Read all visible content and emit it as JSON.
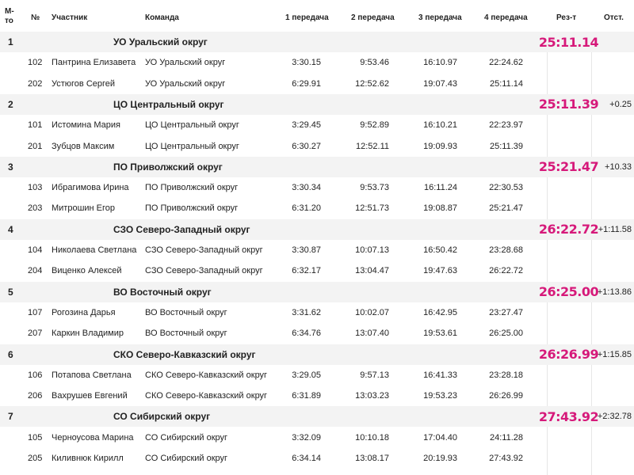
{
  "header": {
    "place_line1": "М-",
    "place_line2": "то",
    "num": "№",
    "participant": "Участник",
    "team": "Команда",
    "leg1": "1 передача",
    "leg2": "2 передача",
    "leg3": "3 передача",
    "leg4": "4 передача",
    "result": "Рез-т",
    "gap": "Отст."
  },
  "accent_color": "#d6197a",
  "teams": [
    {
      "place": "1",
      "name": "УО Уральский округ",
      "result": "25:11.14",
      "gap": "",
      "members": [
        {
          "num": "102",
          "name": "Пантрина Елизавета",
          "team": "УО Уральский округ",
          "t1": "3:30.15",
          "t2": "9:53.46",
          "t3": "16:10.97",
          "t4": "22:24.62"
        },
        {
          "num": "202",
          "name": "Устюгов Сергей",
          "team": "УО Уральский округ",
          "t1": "6:29.91",
          "t2": "12:52.62",
          "t3": "19:07.43",
          "t4": "25:11.14"
        }
      ]
    },
    {
      "place": "2",
      "name": "ЦО Центральный округ",
      "result": "25:11.39",
      "gap": "+0.25",
      "members": [
        {
          "num": "101",
          "name": "Истомина Мария",
          "team": "ЦО Центральный округ",
          "t1": "3:29.45",
          "t2": "9:52.89",
          "t3": "16:10.21",
          "t4": "22:23.97"
        },
        {
          "num": "201",
          "name": "Зубцов Максим",
          "team": "ЦО Центральный округ",
          "t1": "6:30.27",
          "t2": "12:52.11",
          "t3": "19:09.93",
          "t4": "25:11.39"
        }
      ]
    },
    {
      "place": "3",
      "name": "ПО Приволжский округ",
      "result": "25:21.47",
      "gap": "+10.33",
      "members": [
        {
          "num": "103",
          "name": "Ибрагимова Ирина",
          "team": "ПО Приволжский округ",
          "t1": "3:30.34",
          "t2": "9:53.73",
          "t3": "16:11.24",
          "t4": "22:30.53"
        },
        {
          "num": "203",
          "name": "Митрошин Егор",
          "team": "ПО Приволжский округ",
          "t1": "6:31.20",
          "t2": "12:51.73",
          "t3": "19:08.87",
          "t4": "25:21.47"
        }
      ]
    },
    {
      "place": "4",
      "name": "СЗО Северо-Западный округ",
      "result": "26:22.72",
      "gap": "+1:11.58",
      "members": [
        {
          "num": "104",
          "name": "Николаева Светлана",
          "team": "СЗО Северо-Западный округ",
          "t1": "3:30.87",
          "t2": "10:07.13",
          "t3": "16:50.42",
          "t4": "23:28.68"
        },
        {
          "num": "204",
          "name": "Виценко Алексей",
          "team": "СЗО Северо-Западный округ",
          "t1": "6:32.17",
          "t2": "13:04.47",
          "t3": "19:47.63",
          "t4": "26:22.72"
        }
      ]
    },
    {
      "place": "5",
      "name": "ВО Восточный округ",
      "result": "26:25.00",
      "gap": "+1:13.86",
      "members": [
        {
          "num": "107",
          "name": "Рогозина Дарья",
          "team": "ВО Восточный округ",
          "t1": "3:31.62",
          "t2": "10:02.07",
          "t3": "16:42.95",
          "t4": "23:27.47"
        },
        {
          "num": "207",
          "name": "Каркин Владимир",
          "team": "ВО Восточный округ",
          "t1": "6:34.76",
          "t2": "13:07.40",
          "t3": "19:53.61",
          "t4": "26:25.00"
        }
      ]
    },
    {
      "place": "6",
      "name": "СКО Северо-Кавказский округ",
      "result": "26:26.99",
      "gap": "+1:15.85",
      "members": [
        {
          "num": "106",
          "name": "Потапова Светлана",
          "team": "СКО Северо-Кавказский округ",
          "t1": "3:29.05",
          "t2": "9:57.13",
          "t3": "16:41.33",
          "t4": "23:28.18"
        },
        {
          "num": "206",
          "name": "Вахрушев Евгений",
          "team": "СКО Северо-Кавказский округ",
          "t1": "6:31.89",
          "t2": "13:03.23",
          "t3": "19:53.23",
          "t4": "26:26.99"
        }
      ]
    },
    {
      "place": "7",
      "name": "СО Сибирский округ",
      "result": "27:43.92",
      "gap": "+2:32.78",
      "members": [
        {
          "num": "105",
          "name": "Черноусова Марина",
          "team": "СО Сибирский округ",
          "t1": "3:32.09",
          "t2": "10:10.18",
          "t3": "17:04.40",
          "t4": "24:11.28"
        },
        {
          "num": "205",
          "name": "Киливнюк Кирилл",
          "team": "СО Сибирский округ",
          "t1": "6:34.14",
          "t2": "13:08.17",
          "t3": "20:19.93",
          "t4": "27:43.92"
        }
      ]
    }
  ]
}
